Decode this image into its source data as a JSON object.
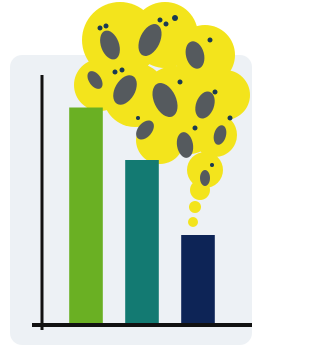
{
  "chart_data": {
    "type": "bar",
    "categories": [
      null,
      null,
      null
    ],
    "values": [
      87,
      66,
      36
    ],
    "colors": [
      "#6ab023",
      "#137a72",
      "#0d2456"
    ],
    "ylim": [
      0,
      100
    ]
  }
}
